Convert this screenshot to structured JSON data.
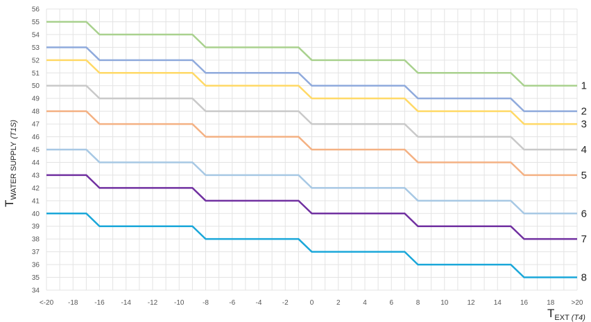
{
  "chart_data": {
    "type": "line",
    "xlabel": {
      "main": "T",
      "sub": "EXT",
      "italic": "(T4)"
    },
    "ylabel": {
      "main": "T",
      "sub": "WATER SUPPLY",
      "italic": "(T1S)"
    },
    "xlim": [
      -20,
      20
    ],
    "ylim": [
      34,
      56
    ],
    "grid": true,
    "x_tick_labels": [
      "<-20",
      "-18",
      "-16",
      "-14",
      "-12",
      "-10",
      "-8",
      "-6",
      "-4",
      "-2",
      "0",
      "2",
      "4",
      "6",
      "8",
      "10",
      "12",
      "14",
      "16",
      "18",
      ">20"
    ],
    "y_tick_labels": [
      "34",
      "35",
      "36",
      "37",
      "38",
      "39",
      "40",
      "41",
      "42",
      "43",
      "44",
      "45",
      "46",
      "47",
      "48",
      "49",
      "50",
      "51",
      "52",
      "53",
      "54",
      "55",
      "56"
    ],
    "x": [
      -20,
      -17,
      -16,
      -9,
      -8,
      -1,
      0,
      7,
      8,
      15,
      16,
      20
    ],
    "series": [
      {
        "name": "1",
        "color": "#a9d18e",
        "values": [
          55,
          55,
          54,
          54,
          53,
          53,
          52,
          52,
          51,
          51,
          50,
          50
        ]
      },
      {
        "name": "2",
        "color": "#8faadc",
        "values": [
          53,
          53,
          52,
          52,
          51,
          51,
          50,
          50,
          49,
          49,
          48,
          48
        ]
      },
      {
        "name": "3",
        "color": "#ffd966",
        "values": [
          52,
          52,
          51,
          51,
          50,
          50,
          49,
          49,
          48,
          48,
          47,
          47
        ]
      },
      {
        "name": "4",
        "color": "#c9c9c9",
        "values": [
          50,
          50,
          49,
          49,
          48,
          48,
          47,
          47,
          46,
          46,
          45,
          45
        ]
      },
      {
        "name": "5",
        "color": "#f4b183",
        "values": [
          48,
          48,
          47,
          47,
          46,
          46,
          45,
          45,
          44,
          44,
          43,
          43
        ]
      },
      {
        "name": "6",
        "color": "#a7c8e4",
        "values": [
          45,
          45,
          44,
          44,
          43,
          43,
          42,
          42,
          41,
          41,
          40,
          40
        ]
      },
      {
        "name": "7",
        "color": "#7030a0",
        "values": [
          43,
          43,
          42,
          42,
          41,
          41,
          40,
          40,
          39,
          39,
          38,
          38
        ]
      },
      {
        "name": "8",
        "color": "#1aa7d9",
        "values": [
          40,
          40,
          39,
          39,
          38,
          38,
          37,
          37,
          36,
          36,
          35,
          35
        ]
      }
    ]
  }
}
